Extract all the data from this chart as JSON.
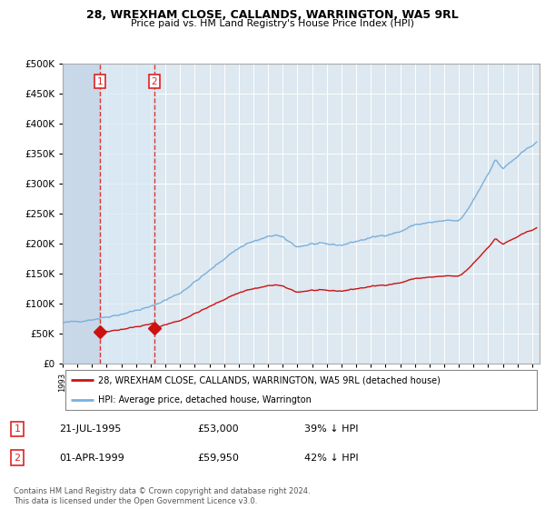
{
  "title1": "28, WREXHAM CLOSE, CALLANDS, WARRINGTON, WA5 9RL",
  "title2": "Price paid vs. HM Land Registry's House Price Index (HPI)",
  "sale1_price": 53000,
  "sale1_year": 1995.554,
  "sale2_price": 59950,
  "sale2_year": 1999.247,
  "legend_line1": "28, WREXHAM CLOSE, CALLANDS, WARRINGTON, WA5 9RL (detached house)",
  "legend_line2": "HPI: Average price, detached house, Warrington",
  "table_row1": [
    "1",
    "21-JUL-1995",
    "£53,000",
    "39% ↓ HPI"
  ],
  "table_row2": [
    "2",
    "01-APR-1999",
    "£59,950",
    "42% ↓ HPI"
  ],
  "footnote1": "Contains HM Land Registry data © Crown copyright and database right 2024.",
  "footnote2": "This data is licensed under the Open Government Licence v3.0.",
  "hpi_color": "#7aafdc",
  "price_color": "#cc1111",
  "vline_color": "#dd2222",
  "bg_color": "#ffffff",
  "plot_bg_color": "#dde8f0",
  "hatch_color": "#c8d8e8",
  "ylim_max": 500000,
  "ylim_min": 0,
  "xmin": 1993.0,
  "xmax": 2025.5
}
